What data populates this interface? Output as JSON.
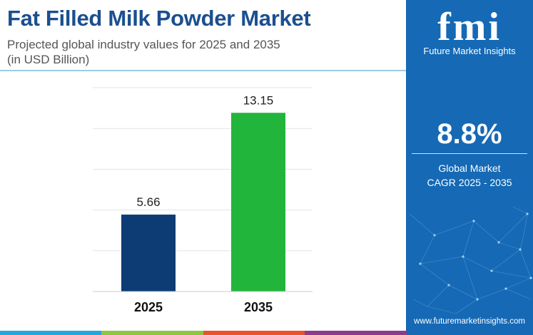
{
  "header": {
    "title": "Fat Filled Milk Powder Market",
    "subtitle_line1": "Projected global industry values for 2025 and 2035",
    "subtitle_line2": "(in USD Billion)"
  },
  "chart_data": {
    "type": "bar",
    "categories": [
      "2025",
      "2035"
    ],
    "values": [
      5.66,
      13.15
    ],
    "value_labels": [
      "5.66",
      "13.15"
    ],
    "bar_colors": [
      "#0d3b73",
      "#22b53b"
    ],
    "ylabel": "",
    "xlabel": "",
    "ylim": [
      0,
      15
    ],
    "grid": true,
    "legend": "none",
    "gridline_color": "#e3e3e3"
  },
  "sidebar": {
    "logo_mark": "fmi",
    "logo_text": "Future Market Insights",
    "cagr_value": "8.8%",
    "cagr_label_line1": "Global Market",
    "cagr_label_line2": "CAGR 2025 - 2035",
    "website": "www.futuremarketinsights.com",
    "background_color": "#1569b5"
  },
  "footer": {
    "band_colors": [
      "#21a9de",
      "#8dc63f",
      "#e8542b",
      "#8e3a8e"
    ]
  }
}
